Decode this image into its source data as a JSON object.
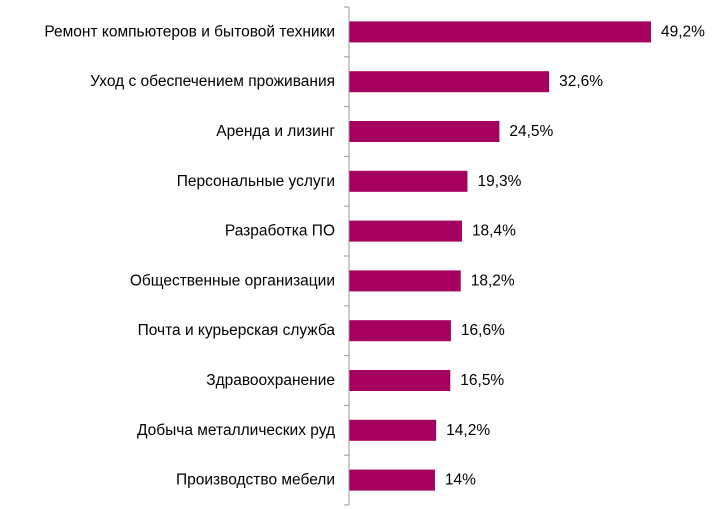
{
  "chart_data": {
    "type": "bar",
    "orientation": "horizontal",
    "categories": [
      "Ремонт компьютеров и бытовой техники",
      "Уход с обеспечением проживания",
      "Аренда и лизинг",
      "Персональные услуги",
      "Разработка ПО",
      "Общественные организации",
      "Почта и курьерская служба",
      "Здравоохранение",
      "Добыча металлических руд",
      "Производство мебели"
    ],
    "values": [
      49.2,
      32.6,
      24.5,
      19.3,
      18.4,
      18.2,
      16.6,
      16.5,
      14.2,
      14.0
    ],
    "value_labels": [
      "49,2%",
      "32,6%",
      "24,5%",
      "19,3%",
      "18,4%",
      "18,2%",
      "16,6%",
      "16,5%",
      "14,2%",
      "14%"
    ],
    "xlim": [
      0,
      49.2
    ],
    "title": "",
    "xlabel": "",
    "ylabel": "",
    "grid": false,
    "legend": "none",
    "bar_color": "#a50060",
    "axis_color": "#9a9a9a"
  }
}
